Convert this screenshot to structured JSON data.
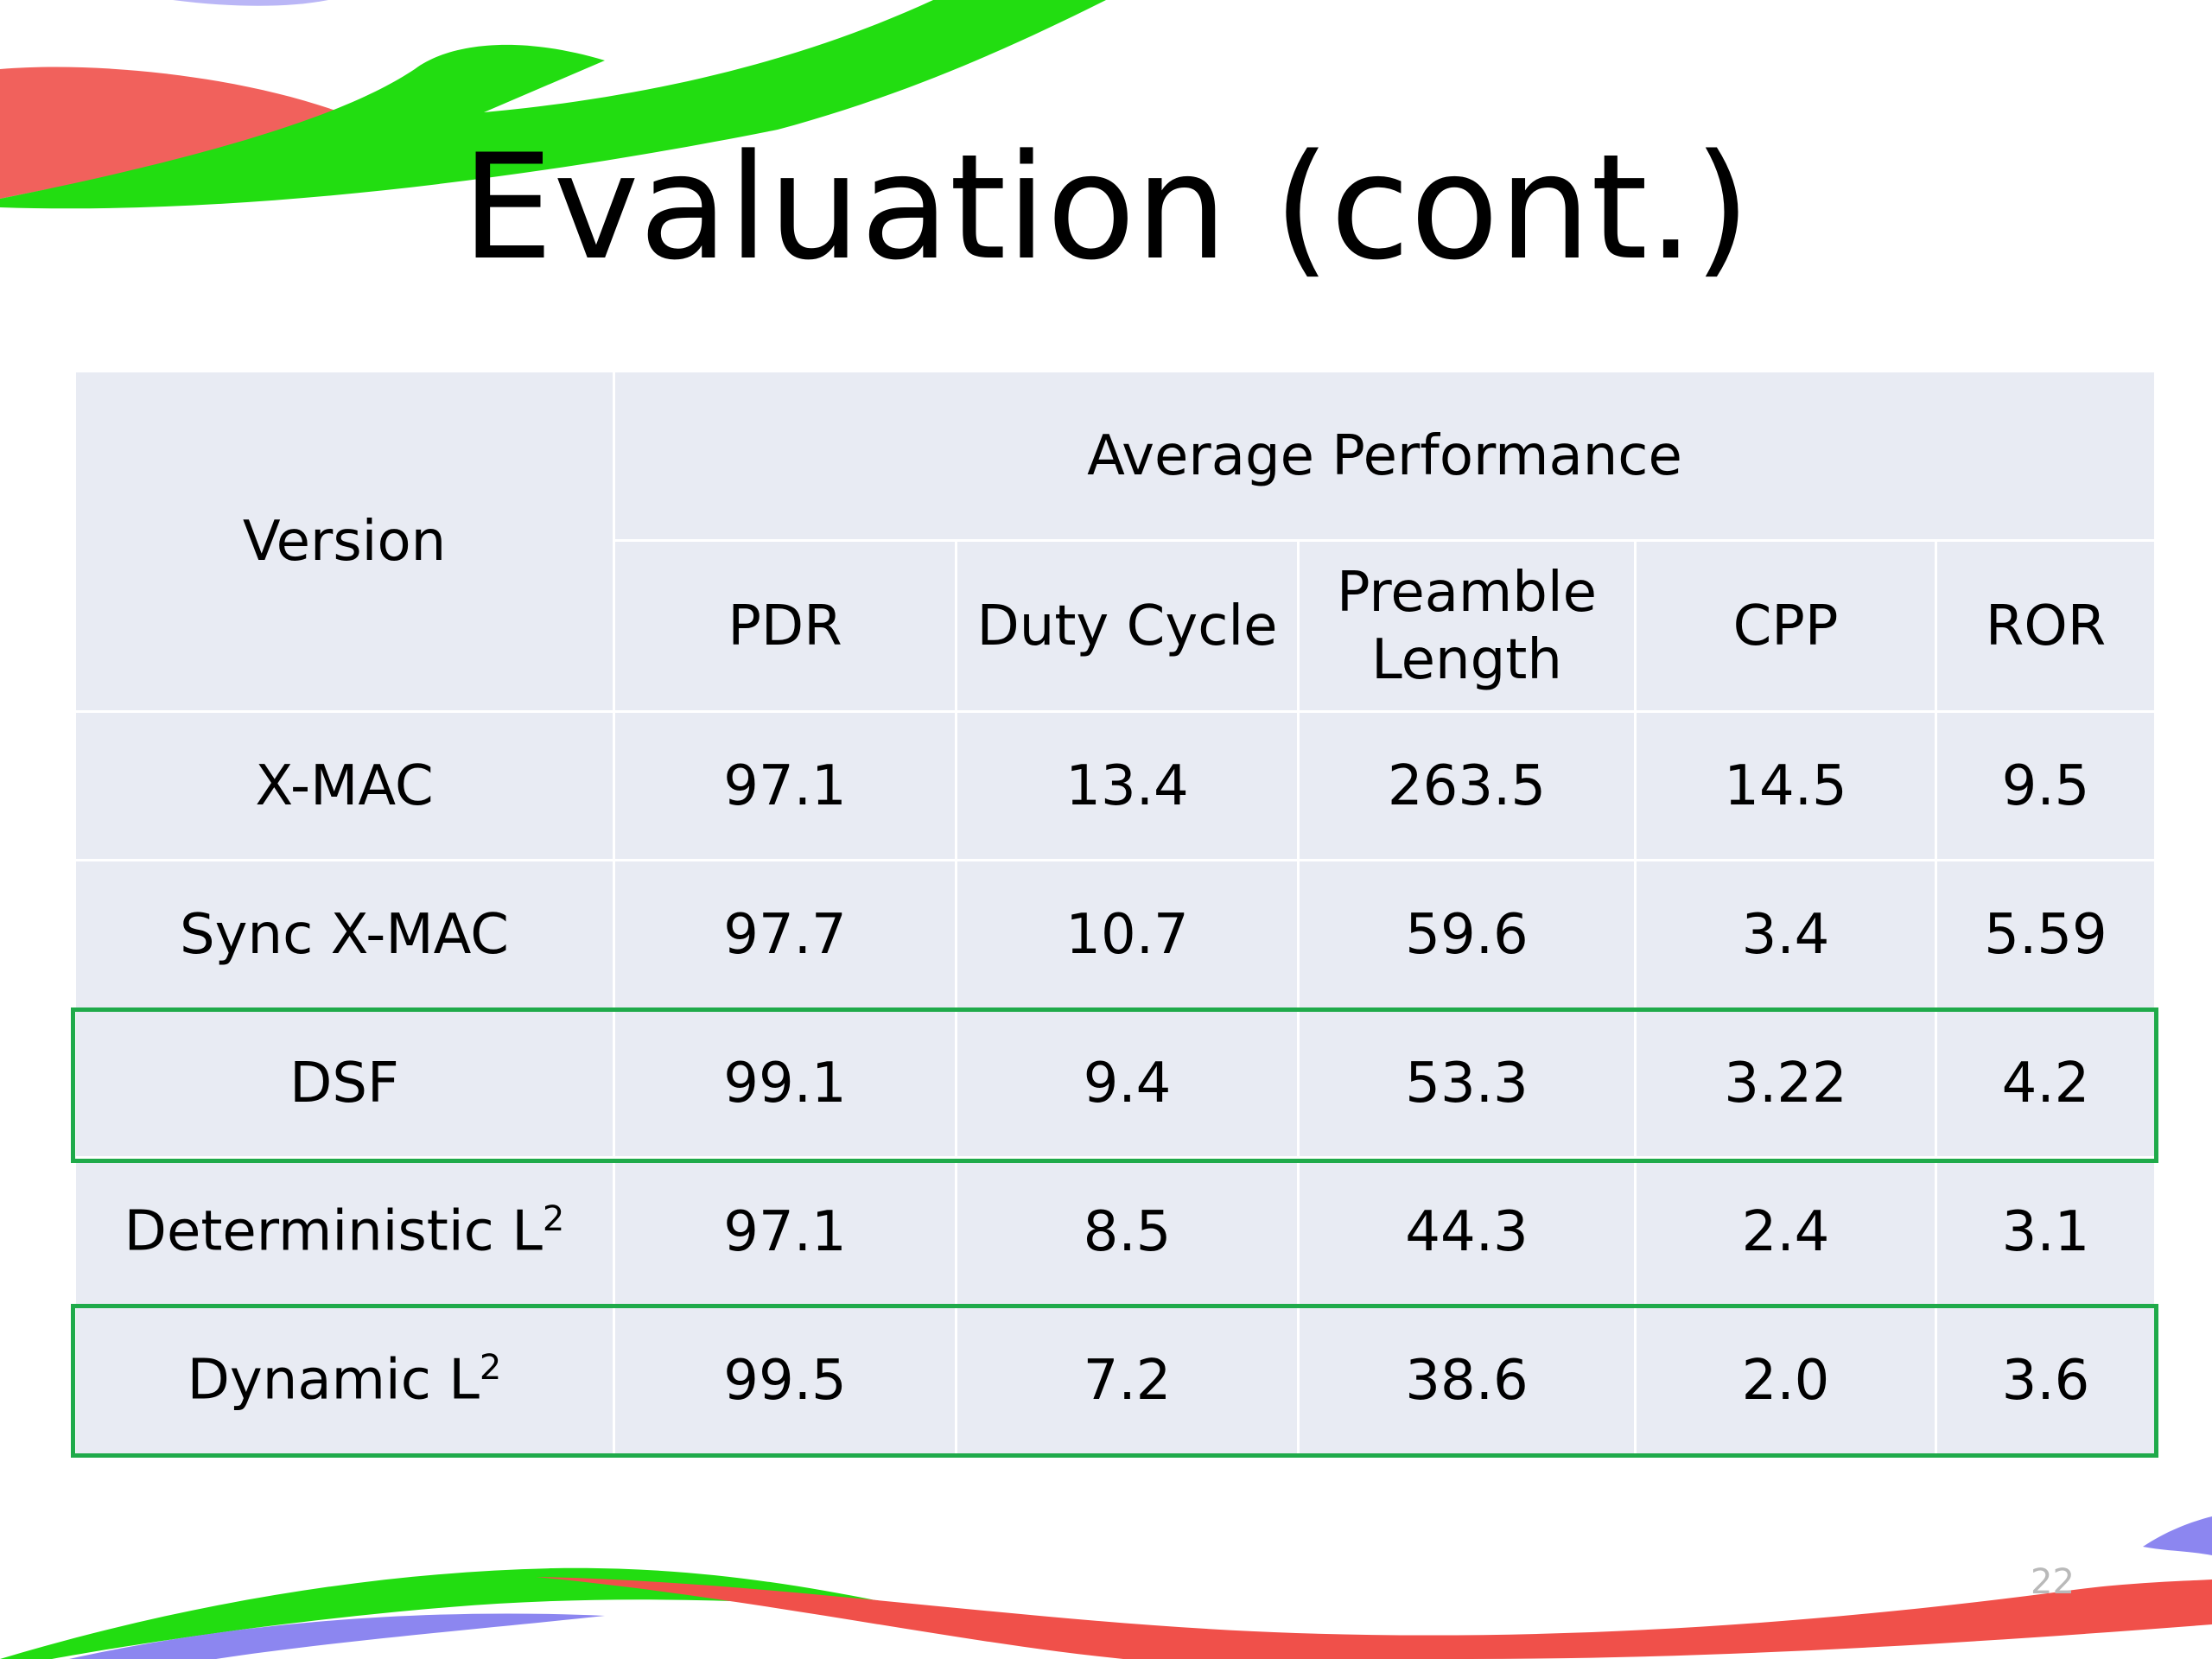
{
  "slide": {
    "title": "Evaluation (cont.)",
    "page_number": "22"
  },
  "table": {
    "header_version": "Version",
    "header_group": "Average Performance",
    "columns": [
      "PDR",
      "Duty Cycle",
      "Preamble Length",
      "CPP",
      "ROR"
    ],
    "rows": [
      {
        "version": "X-MAC",
        "superscript": "",
        "values": [
          "97.1",
          "13.4",
          "263.5",
          "14.5",
          "9.5"
        ],
        "highlighted": false
      },
      {
        "version": "Sync X-MAC",
        "superscript": "",
        "values": [
          "97.7",
          "10.7",
          "59.6",
          "3.4",
          "5.59"
        ],
        "highlighted": false
      },
      {
        "version": "DSF",
        "superscript": "",
        "values": [
          "99.1",
          "9.4",
          "53.3",
          "3.22",
          "4.2"
        ],
        "highlighted": true
      },
      {
        "version": "Deterministic L",
        "superscript": "2",
        "values": [
          "97.1",
          "8.5",
          "44.3",
          "2.4",
          "3.1"
        ],
        "highlighted": false
      },
      {
        "version": "Dynamic L",
        "superscript": "2",
        "values": [
          "99.5",
          "7.2",
          "38.6",
          "2.0",
          "3.6"
        ],
        "highlighted": true
      }
    ]
  },
  "colors": {
    "cell_background": "#e8ebf3",
    "highlight_border": "#1faa4a",
    "swoosh_green": "#22dd11",
    "swoosh_red": "#f0504a",
    "swoosh_blue": "#8c86f0"
  }
}
